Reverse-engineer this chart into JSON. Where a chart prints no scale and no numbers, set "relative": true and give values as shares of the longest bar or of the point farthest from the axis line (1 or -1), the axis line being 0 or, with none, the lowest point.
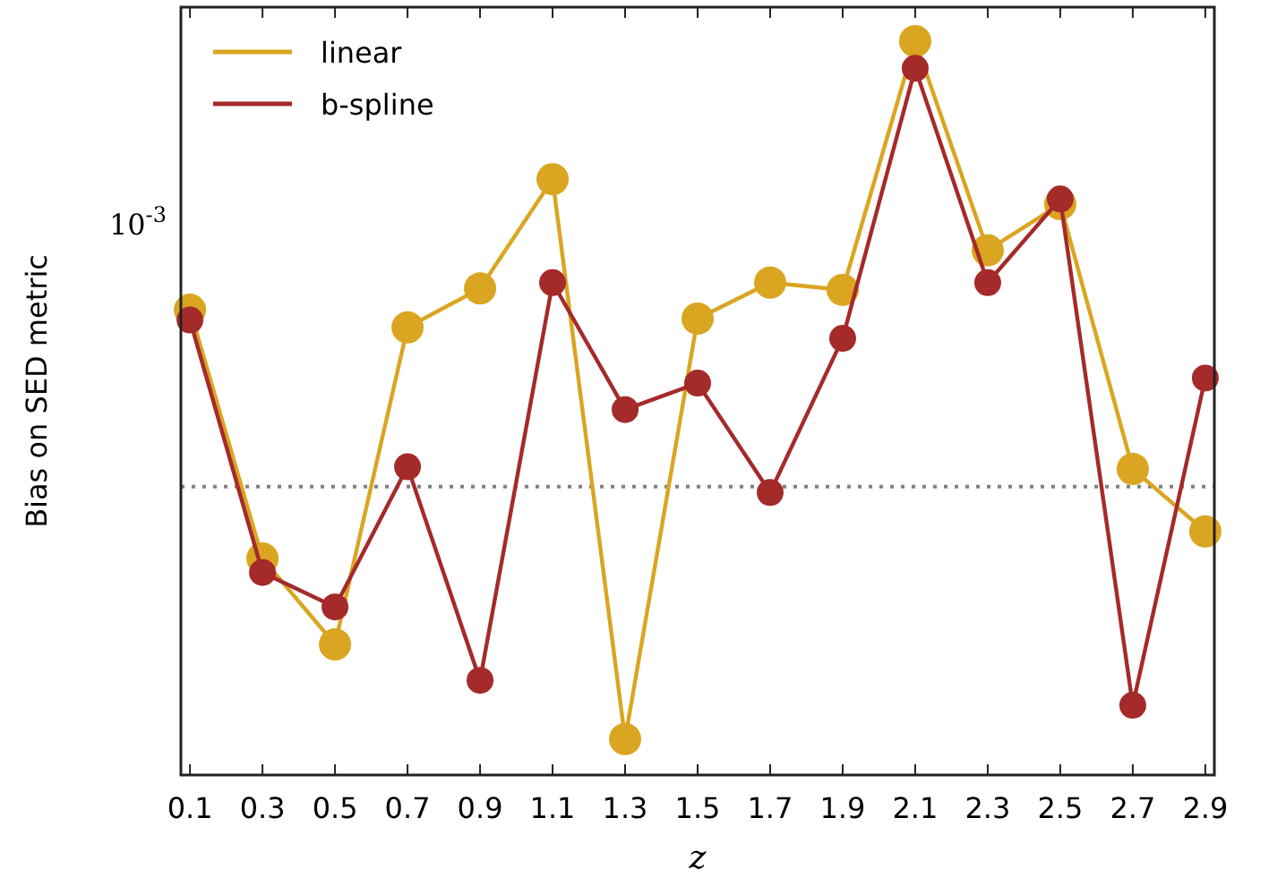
{
  "chart_data": {
    "type": "line",
    "relative": true,
    "xlabel": "z",
    "ylabel": "Bias on SED metric",
    "x": [
      0.1,
      0.3,
      0.5,
      0.7,
      0.9,
      1.1,
      1.3,
      1.5,
      1.7,
      1.9,
      2.1,
      2.3,
      2.5,
      2.7,
      2.9
    ],
    "xlim": [
      0.075,
      2.925
    ],
    "xticks": [
      0.1,
      0.3,
      0.5,
      0.7,
      0.9,
      1.1,
      1.3,
      1.5,
      1.7,
      1.9,
      2.1,
      2.3,
      2.5,
      2.7,
      2.9
    ],
    "series": [
      {
        "name": "linear",
        "color": "#daa520",
        "values": [
          0.634,
          0.295,
          0.178,
          0.61,
          0.663,
          0.812,
          0.049,
          0.622,
          0.671,
          0.661,
          1,
          0.715,
          0.778,
          0.417,
          0.332
        ]
      },
      {
        "name": "b-spline",
        "color": "#a52a2a",
        "values": [
          0.62,
          0.276,
          0.229,
          0.42,
          0.129,
          0.671,
          0.498,
          0.534,
          0.385,
          0.595,
          0.963,
          0.671,
          0.785,
          0.095,
          0.541
        ]
      }
    ],
    "ref_lines": [
      {
        "axis": "y",
        "value": 0.393,
        "color": "#808080",
        "line_style": "dotted"
      }
    ],
    "annotations": [
      "10$^{-3}$"
    ],
    "marker": "circle",
    "line_style": "solid",
    "legend": "top left",
    "grid": false
  }
}
